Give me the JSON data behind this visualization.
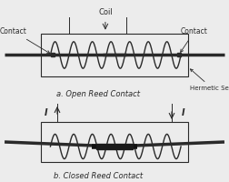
{
  "bg_color": "#ececec",
  "line_color": "#2a2a2a",
  "title_a": "a. Open Reed Contact",
  "title_b": "b. Closed Reed Contact",
  "label_coil": "Coil",
  "label_contact_left": "Contact",
  "label_contact_right": "Contact",
  "label_hermetic": "Hermetic Seal",
  "label_current": "I",
  "fig_w": 2.52,
  "fig_h": 2.0,
  "dpi": 100
}
